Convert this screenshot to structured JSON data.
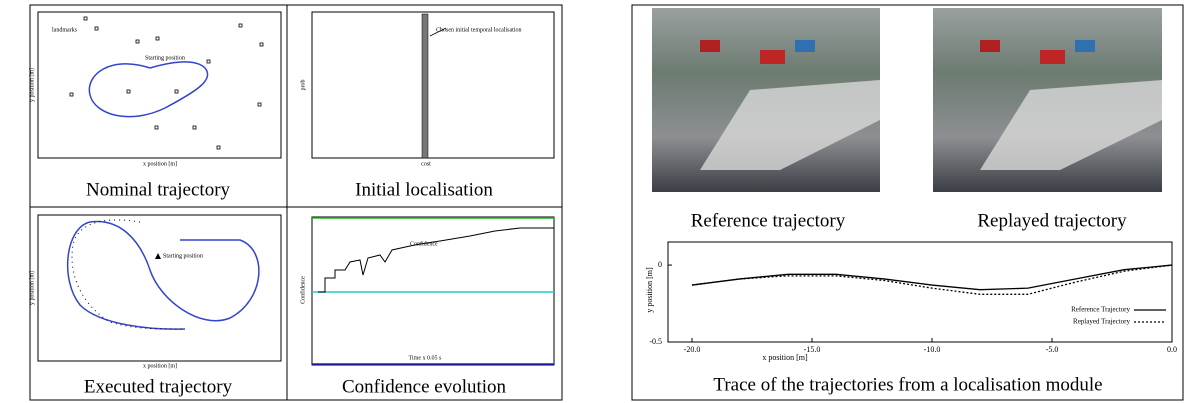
{
  "left_figure": {
    "panels": [
      {
        "caption": "Nominal trajectory",
        "x_label": "x position [m]",
        "y_label": "y position [m]",
        "annotations": [
          "landmarks",
          "Starting position"
        ]
      },
      {
        "caption": "Initial localisation",
        "x_label": "cost",
        "y_label": "prob",
        "annotations": [
          "Chosen initial temporal localisation"
        ]
      },
      {
        "caption": "Executed trajectory",
        "x_label": "x position [m]",
        "y_label": "y position [m]",
        "annotations": [
          "Starting position"
        ]
      },
      {
        "caption": "Confidence evolution",
        "x_label": "Time x 0.05 s",
        "y_label": "Confidence",
        "annotations": [
          "Confidence"
        ]
      }
    ]
  },
  "right_figure": {
    "photo_captions": [
      "Reference trajectory",
      "Replayed trajectory"
    ],
    "caption": "Trace of the trajectories from a localisation module"
  },
  "chart_data": {
    "type": "line",
    "x_label": "x position [m]",
    "y_label": "y position [m]",
    "x": [
      -20,
      -18,
      -16,
      -14,
      -12,
      -10,
      -8,
      -6,
      -4,
      -2,
      0
    ],
    "series": [
      {
        "name": "Reference Trajectory",
        "color": "#000000",
        "line_style": "solid",
        "values": [
          -0.13,
          -0.09,
          -0.06,
          -0.06,
          -0.09,
          -0.13,
          -0.16,
          -0.15,
          -0.09,
          -0.03,
          0
        ]
      },
      {
        "name": "Replayed Trajectory",
        "color": "#000000",
        "line_style": "dotted",
        "values": [
          -0.13,
          -0.09,
          -0.07,
          -0.07,
          -0.1,
          -0.15,
          -0.19,
          -0.19,
          -0.11,
          -0.04,
          0
        ]
      }
    ],
    "xlim": [
      -21,
      0
    ],
    "xticks": [
      {
        "value": -20,
        "label": "-20.0"
      },
      {
        "value": -15,
        "label": "-15.0"
      },
      {
        "value": -10,
        "label": "-10.0"
      },
      {
        "value": -5,
        "label": "-5.0"
      },
      {
        "value": 0,
        "label": "0.0"
      }
    ],
    "ylim": [
      -0.5,
      0.15
    ],
    "yticks": [
      -0.5,
      0
    ],
    "legend": "lower right"
  }
}
